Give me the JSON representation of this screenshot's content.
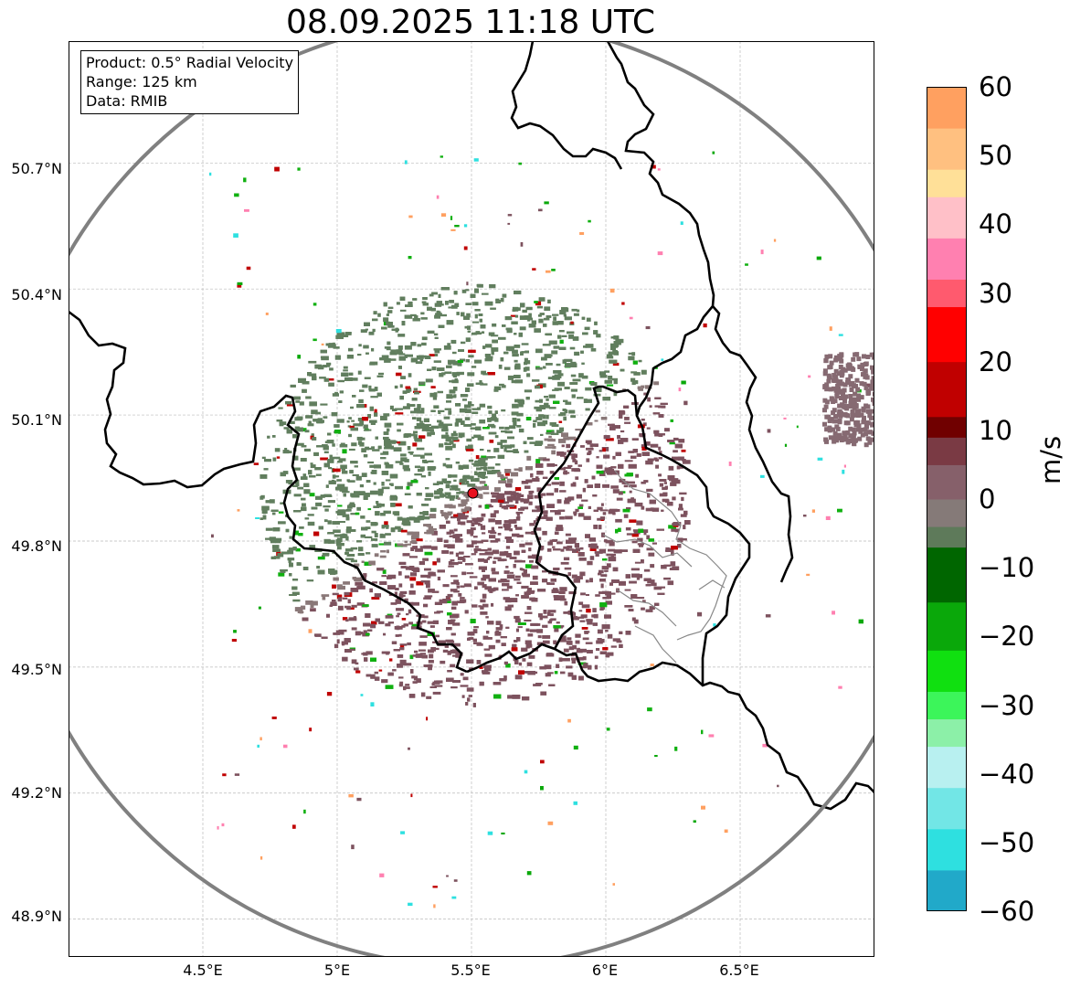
{
  "title": "08.09.2025 11:18 UTC",
  "info": {
    "product": "Product: 0.5° Radial Velocity",
    "range": "Range: 125 km",
    "data": "Data: RMIB"
  },
  "map": {
    "lat_ticks": [
      "50.7°N",
      "50.4°N",
      "50.1°N",
      "49.8°N",
      "49.5°N",
      "49.2°N",
      "48.9°N"
    ],
    "lon_ticks": [
      "4.5°E",
      "5°E",
      "5.5°E",
      "6°E",
      "6.5°E"
    ],
    "lat_range": [
      48.81,
      50.99
    ],
    "lon_range": [
      4.0,
      7.0
    ],
    "radar_site": {
      "lon": 5.505,
      "lat": 49.914
    },
    "range_km": 125,
    "colors": {
      "approaching": "#617e5e",
      "receding": "#7d525e",
      "neutral": "#8a7878",
      "border": "#000000",
      "range_ring": "#808080",
      "radar_marker": "#e8101e"
    }
  },
  "colorbar": {
    "unit": "m/s",
    "min": -60,
    "max": 60,
    "ticks": [
      "60",
      "50",
      "40",
      "30",
      "20",
      "10",
      "0",
      "−10",
      "−20",
      "−30",
      "−40",
      "−50",
      "−60"
    ],
    "stops": [
      {
        "v": -60,
        "c": "#1f77b4"
      },
      {
        "v": -54,
        "c": "#21a9c9"
      },
      {
        "v": -48,
        "c": "#2ee0e0"
      },
      {
        "v": -42,
        "c": "#72e6e6"
      },
      {
        "v": -36,
        "c": "#b8f0f0"
      },
      {
        "v": -32,
        "c": "#8cf0a8"
      },
      {
        "v": -28,
        "c": "#3cf55a"
      },
      {
        "v": -22,
        "c": "#10e010"
      },
      {
        "v": -15,
        "c": "#0aa80a"
      },
      {
        "v": -7,
        "c": "#006600"
      },
      {
        "v": -4,
        "c": "#5e7a5a"
      },
      {
        "v": 0,
        "c": "#857a78"
      },
      {
        "v": 5,
        "c": "#86606a"
      },
      {
        "v": 9,
        "c": "#7a3a44"
      },
      {
        "v": 12,
        "c": "#700000"
      },
      {
        "v": 20,
        "c": "#c00000"
      },
      {
        "v": 28,
        "c": "#ff0000"
      },
      {
        "v": 32,
        "c": "#ff5a6e"
      },
      {
        "v": 38,
        "c": "#ff80b0"
      },
      {
        "v": 44,
        "c": "#ffc0c8"
      },
      {
        "v": 48,
        "c": "#ffe098"
      },
      {
        "v": 54,
        "c": "#ffc080"
      },
      {
        "v": 60,
        "c": "#ffa060"
      }
    ]
  }
}
